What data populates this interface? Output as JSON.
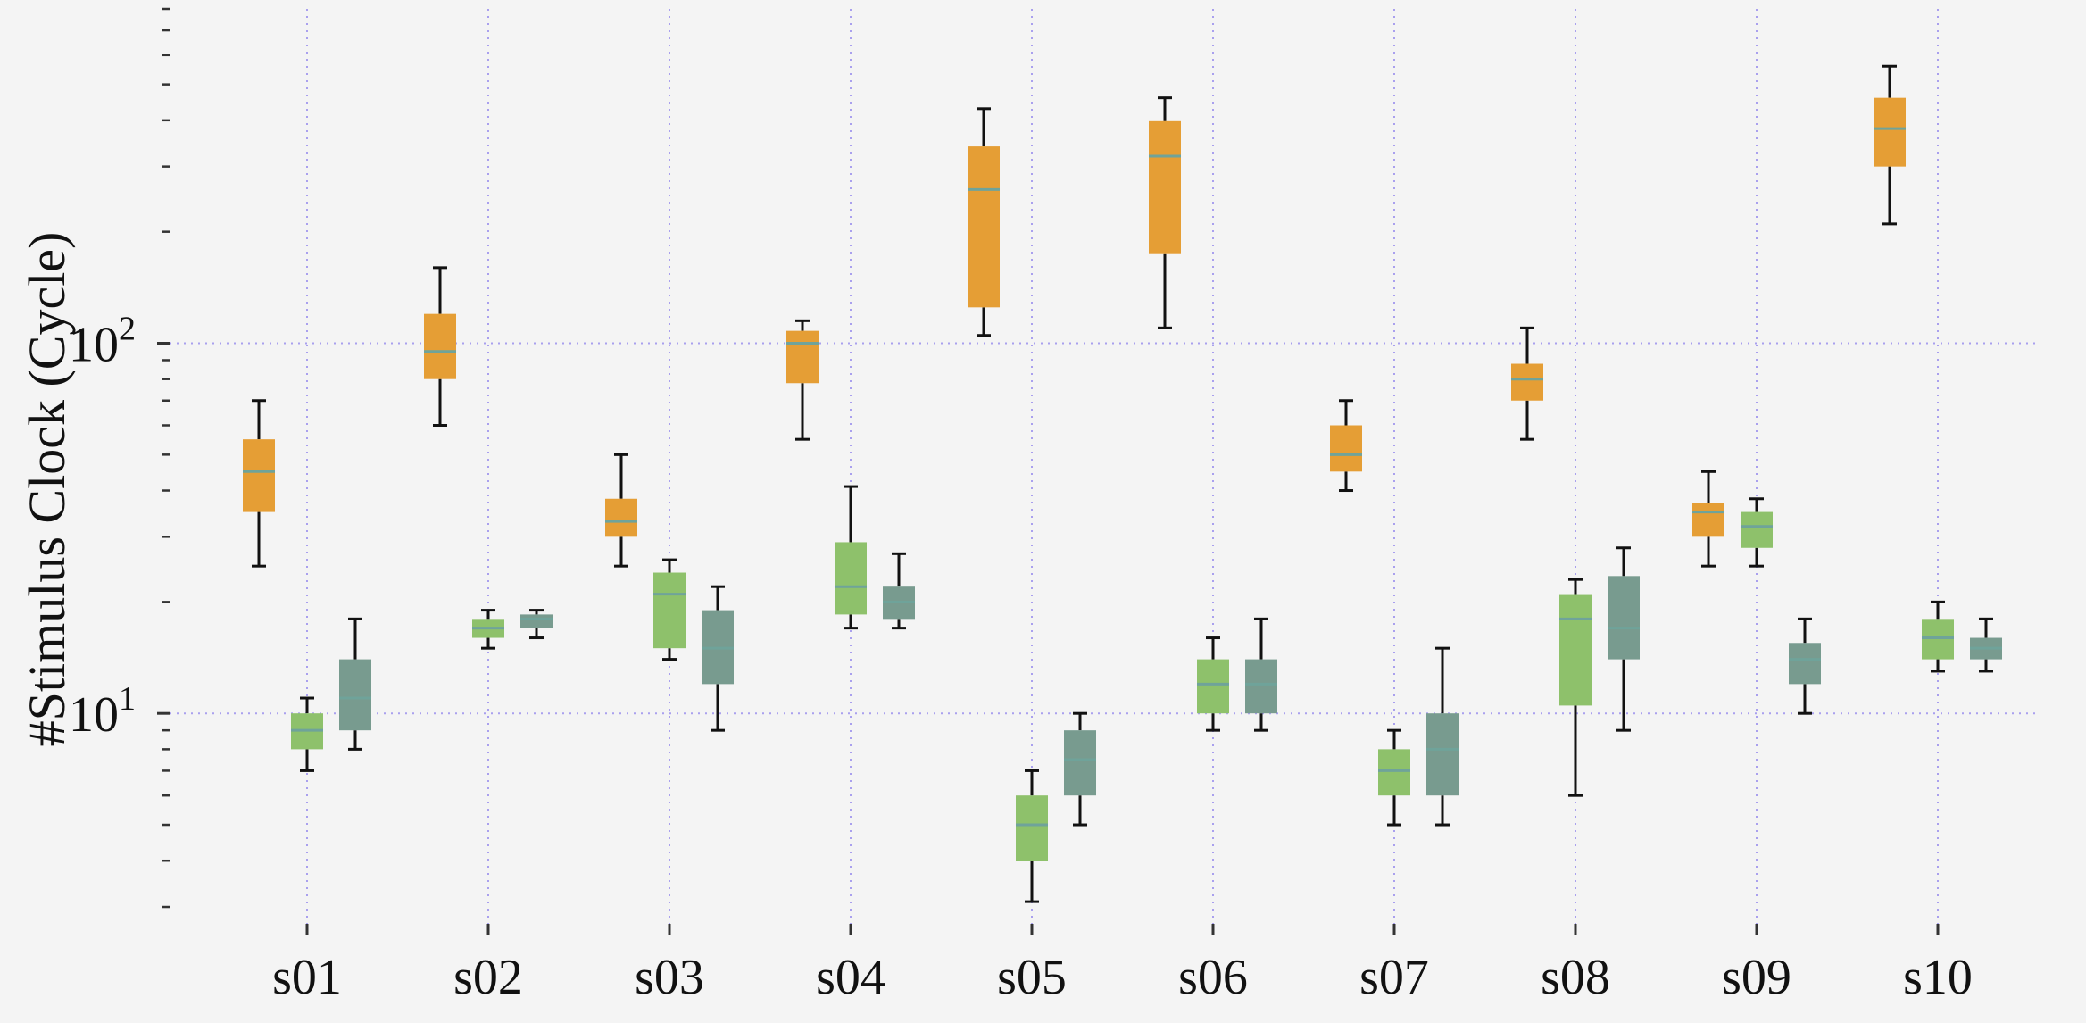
{
  "chart_data": {
    "type": "box",
    "ylabel": "#Stimulus Clock (Cycle)",
    "xlabel": "",
    "yscale": "log",
    "ylim": [
      2.7,
      800
    ],
    "grid": "dotted, at x categories and y decades",
    "categories": [
      "s01",
      "s02",
      "s03",
      "s04",
      "s05",
      "s06",
      "s07",
      "s08",
      "s09",
      "s10"
    ],
    "y_tick_labels": [
      {
        "value": 10,
        "base": "10",
        "exp": "1"
      },
      {
        "value": 100,
        "base": "10",
        "exp": "2"
      }
    ],
    "series": [
      {
        "color": "#e59e35",
        "boxes": [
          {
            "whislo": 25,
            "q1": 35,
            "med": 45,
            "q3": 55,
            "whishi": 70
          },
          {
            "whislo": 60,
            "q1": 80,
            "med": 95,
            "q3": 120,
            "whishi": 160
          },
          {
            "whislo": 25,
            "q1": 30,
            "med": 33,
            "q3": 38,
            "whishi": 50
          },
          {
            "whislo": 55,
            "q1": 78,
            "med": 100,
            "q3": 108,
            "whishi": 115
          },
          {
            "whislo": 105,
            "q1": 125,
            "med": 260,
            "q3": 340,
            "whishi": 430
          },
          {
            "whislo": 110,
            "q1": 175,
            "med": 320,
            "q3": 400,
            "whishi": 460
          },
          {
            "whislo": 40,
            "q1": 45,
            "med": 50,
            "q3": 60,
            "whishi": 70
          },
          {
            "whislo": 55,
            "q1": 70,
            "med": 80,
            "q3": 88,
            "whishi": 110
          },
          {
            "whislo": 25,
            "q1": 30,
            "med": 35,
            "q3": 37,
            "whishi": 45
          },
          {
            "whislo": 210,
            "q1": 300,
            "med": 380,
            "q3": 460,
            "whishi": 560
          }
        ]
      },
      {
        "color": "#8ec16b",
        "boxes": [
          {
            "whislo": 7,
            "q1": 8,
            "med": 9,
            "q3": 10,
            "whishi": 11
          },
          {
            "whislo": 15,
            "q1": 16,
            "med": 17,
            "q3": 18,
            "whishi": 19
          },
          {
            "whislo": 14,
            "q1": 15,
            "med": 21,
            "q3": 24,
            "whishi": 26
          },
          {
            "whislo": 17,
            "q1": 18.5,
            "med": 22,
            "q3": 29,
            "whishi": 41
          },
          {
            "whislo": 3.1,
            "q1": 4,
            "med": 5,
            "q3": 6,
            "whishi": 7
          },
          {
            "whislo": 9,
            "q1": 10,
            "med": 12,
            "q3": 14,
            "whishi": 16
          },
          {
            "whislo": 5,
            "q1": 6,
            "med": 7,
            "q3": 8,
            "whishi": 9
          },
          {
            "whislo": 6,
            "q1": 10.5,
            "med": 18,
            "q3": 21,
            "whishi": 23
          },
          {
            "whislo": 25,
            "q1": 28,
            "med": 32,
            "q3": 35,
            "whishi": 38
          },
          {
            "whislo": 13,
            "q1": 14,
            "med": 16,
            "q3": 18,
            "whishi": 20
          }
        ]
      },
      {
        "color": "#789b8f",
        "boxes": [
          {
            "whislo": 8,
            "q1": 9,
            "med": 11,
            "q3": 14,
            "whishi": 18
          },
          {
            "whislo": 16,
            "q1": 17,
            "med": 18,
            "q3": 18.5,
            "whishi": 19
          },
          {
            "whislo": 9,
            "q1": 12,
            "med": 15,
            "q3": 19,
            "whishi": 22
          },
          {
            "whislo": 17,
            "q1": 18,
            "med": 20,
            "q3": 22,
            "whishi": 27
          },
          {
            "whislo": 5,
            "q1": 6,
            "med": 7.5,
            "q3": 9,
            "whishi": 10
          },
          {
            "whislo": 9,
            "q1": 10,
            "med": 12,
            "q3": 14,
            "whishi": 18
          },
          {
            "whislo": 5,
            "q1": 6,
            "med": 8,
            "q3": 10,
            "whishi": 15
          },
          {
            "whislo": 9,
            "q1": 14,
            "med": 17,
            "q3": 23.5,
            "whishi": 28
          },
          {
            "whislo": 10,
            "q1": 12,
            "med": 14,
            "q3": 15.5,
            "whishi": 18
          },
          {
            "whislo": 13,
            "q1": 14,
            "med": 15,
            "q3": 16,
            "whishi": 18
          }
        ]
      }
    ],
    "median_color": "#6fa39a",
    "whisker_color": "#111111",
    "grid_color": "#a9a0ee"
  }
}
